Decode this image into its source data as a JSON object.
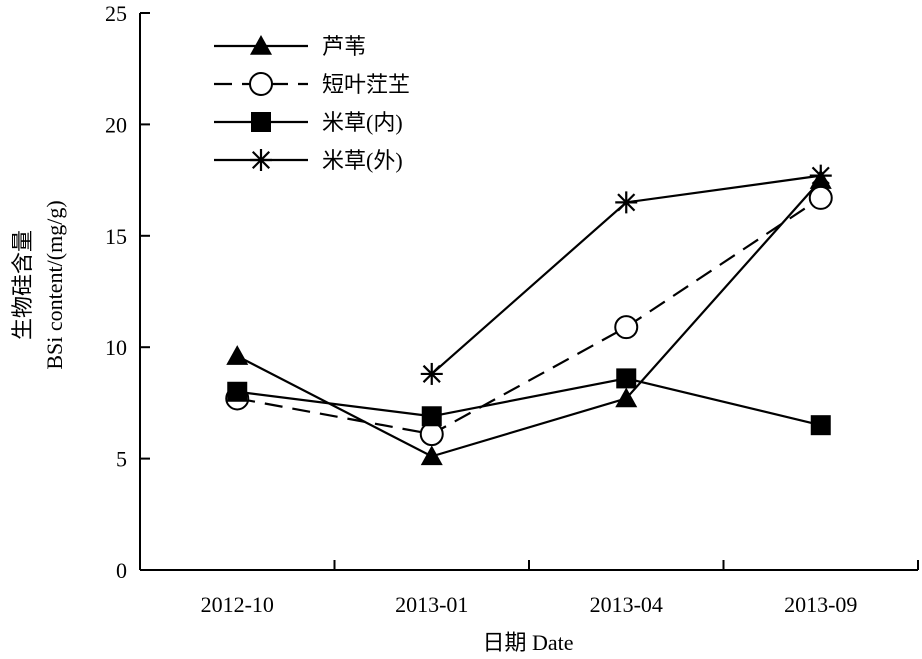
{
  "chart_data": {
    "type": "line",
    "categories": [
      "2012-10",
      "2013-01",
      "2013-04",
      "2013-09"
    ],
    "xlabel": "日期 Date",
    "ylabel_line1": "生物硅含量",
    "ylabel_line2": "BSi content/(mg/g)",
    "ylim": [
      0,
      25
    ],
    "yticks": [
      "0",
      "5",
      "10",
      "15",
      "20",
      "25"
    ],
    "legend_position": "top-left",
    "grid": false,
    "series": [
      {
        "name": "芦苇",
        "marker": "triangle-filled",
        "dash": "solid",
        "values": [
          9.6,
          5.1,
          7.7,
          17.5
        ]
      },
      {
        "name": "短叶茳芏",
        "marker": "circle-open",
        "dash": "dashed",
        "values": [
          7.7,
          6.1,
          10.9,
          16.7
        ]
      },
      {
        "name": "米草(内)",
        "marker": "square-filled",
        "dash": "solid",
        "values": [
          8.0,
          6.9,
          8.6,
          6.5
        ]
      },
      {
        "name": "米草(外)",
        "marker": "asterisk",
        "dash": "solid",
        "values": [
          null,
          8.8,
          16.5,
          17.7
        ]
      }
    ]
  }
}
